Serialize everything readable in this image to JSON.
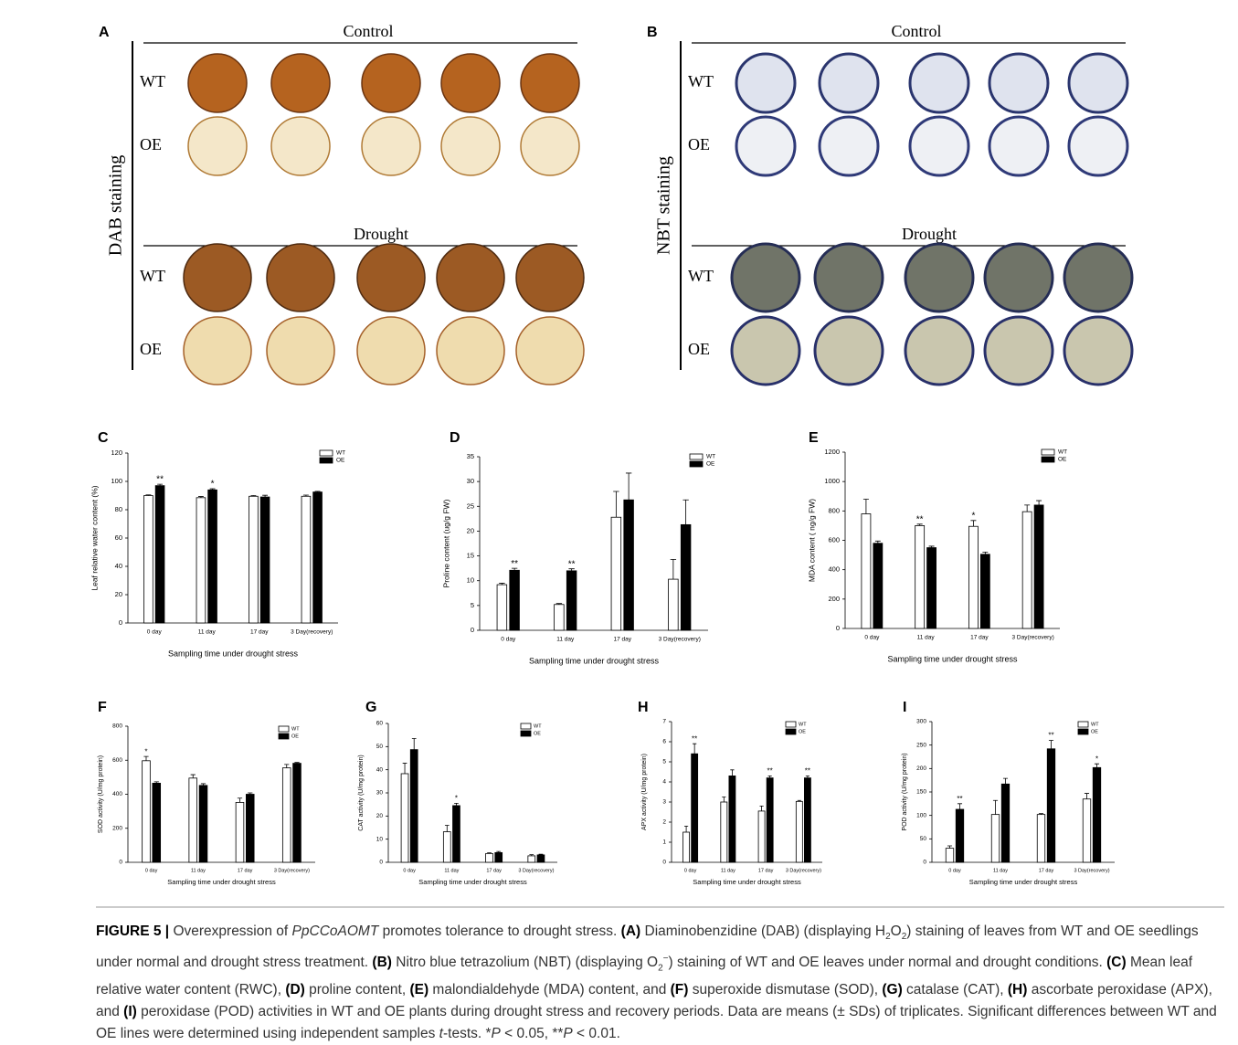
{
  "panels": [
    {
      "label": "A",
      "stain": "DAB staining",
      "groups": [
        {
          "title": "Control",
          "rows": [
            "WT",
            "OE"
          ]
        },
        {
          "title": "Drought",
          "rows": [
            "WT",
            "OE"
          ]
        }
      ]
    },
    {
      "label": "B",
      "stain": "NBT staining",
      "groups": [
        {
          "title": "Control",
          "rows": [
            "WT",
            "OE"
          ]
        },
        {
          "title": "Drought",
          "rows": [
            "WT",
            "OE"
          ]
        }
      ]
    }
  ],
  "chart_data": [
    {
      "type": "bar",
      "panel_label": "C",
      "ylabel": "Leaf relative water content (%)",
      "xlabel": "Sampling time under drought  stress",
      "categories": [
        "0 day",
        "11 day",
        "17 day",
        "3 Day(recovery)"
      ],
      "series": [
        {
          "name": "WT",
          "color": "#ffffff",
          "values": [
            90,
            88.5,
            89.5,
            89.5
          ],
          "errors": [
            0.5,
            0.8,
            0.5,
            0.8
          ],
          "significance": [
            null,
            null,
            null,
            null
          ]
        },
        {
          "name": "OE",
          "color": "#000000",
          "values": [
            97,
            94,
            89,
            92.5
          ],
          "errors": [
            1,
            0.8,
            1.2,
            0.5
          ],
          "significance": [
            "**",
            "*",
            null,
            null
          ]
        }
      ],
      "ylim": [
        0,
        120
      ],
      "yticks": [
        0,
        20,
        40,
        60,
        80,
        100,
        120
      ],
      "legend": "upper right"
    },
    {
      "type": "bar",
      "panel_label": "D",
      "ylabel": "Proline content (ug/g FW)",
      "xlabel": "Sampling time under drought stress",
      "categories": [
        "0 day",
        "11 day",
        "17 day",
        "3 Day(recovery)"
      ],
      "series": [
        {
          "name": "WT",
          "color": "#ffffff",
          "values": [
            9.2,
            5.2,
            22.8,
            10.3
          ],
          "errors": [
            0.3,
            0.2,
            5.2,
            4.0
          ],
          "significance": [
            null,
            null,
            null,
            null
          ]
        },
        {
          "name": "OE",
          "color": "#000000",
          "values": [
            12.1,
            12.0,
            26.3,
            21.3
          ],
          "errors": [
            0.4,
            0.4,
            5.4,
            5.0
          ],
          "significance": [
            "**",
            "**",
            null,
            null
          ]
        }
      ],
      "ylim": [
        0,
        35
      ],
      "yticks": [
        0,
        5,
        10,
        15,
        20,
        25,
        30,
        35
      ],
      "legend": "upper right"
    },
    {
      "type": "bar",
      "panel_label": "E",
      "ylabel": "MDA content ( ng/g FW)",
      "xlabel": "Sampling time under drought stress",
      "categories": [
        "0 day",
        "11 day",
        "17 day",
        "3 Day(recovery)"
      ],
      "series": [
        {
          "name": "WT",
          "color": "#ffffff",
          "values": [
            780,
            700,
            695,
            795
          ],
          "errors": [
            100,
            10,
            40,
            45
          ],
          "significance": [
            null,
            "**",
            "*",
            null
          ]
        },
        {
          "name": "OE",
          "color": "#000000",
          "values": [
            580,
            550,
            505,
            840
          ],
          "errors": [
            15,
            10,
            15,
            30
          ],
          "significance": [
            null,
            null,
            null,
            null
          ]
        }
      ],
      "ylim": [
        0,
        1200
      ],
      "yticks": [
        0,
        200,
        400,
        600,
        800,
        1000,
        1200
      ],
      "legend": "upper right"
    },
    {
      "type": "bar",
      "panel_label": "F",
      "ylabel": "SOD activity (U/mg protein)",
      "xlabel": "Sampling time under drought stress",
      "categories": [
        "0 day",
        "11 day",
        "17 day",
        "3 Day(recovery)"
      ],
      "series": [
        {
          "name": "WT",
          "color": "#ffffff",
          "values": [
            597,
            495,
            352,
            555
          ],
          "errors": [
            25,
            20,
            25,
            20
          ],
          "significance": [
            "*",
            null,
            null,
            null
          ]
        },
        {
          "name": "OE",
          "color": "#000000",
          "values": [
            465,
            452,
            400,
            582
          ],
          "errors": [
            8,
            10,
            8,
            5
          ],
          "significance": [
            null,
            null,
            null,
            null
          ]
        }
      ],
      "ylim": [
        0,
        800
      ],
      "yticks": [
        0,
        200,
        400,
        600,
        800
      ],
      "legend": "upper right"
    },
    {
      "type": "bar",
      "panel_label": "G",
      "ylabel": "CAT activity (U/mg protein)",
      "xlabel": "Sampling time under drought stress",
      "categories": [
        "0 day",
        "11 day",
        "17 day",
        "3 Day(recovery)"
      ],
      "series": [
        {
          "name": "WT",
          "color": "#ffffff",
          "values": [
            38.3,
            13.2,
            3.8,
            2.8
          ],
          "errors": [
            4.5,
            2.8,
            0.3,
            0.5
          ],
          "significance": [
            null,
            null,
            null,
            null
          ]
        },
        {
          "name": "OE",
          "color": "#000000",
          "values": [
            48.7,
            24.5,
            4.2,
            3.2
          ],
          "errors": [
            4.8,
            1.0,
            0.5,
            0.3
          ],
          "significance": [
            null,
            "*",
            null,
            null
          ]
        }
      ],
      "ylim": [
        0,
        60
      ],
      "yticks": [
        0,
        10,
        20,
        30,
        40,
        50,
        60
      ],
      "legend": "upper right"
    },
    {
      "type": "bar",
      "panel_label": "H",
      "ylabel": "APX activity (U/mg protein)",
      "xlabel": "Sampling time under drought stress",
      "categories": [
        "0 day",
        "11 day",
        "17 day",
        "3 Day(recovery)"
      ],
      "series": [
        {
          "name": "WT",
          "color": "#ffffff",
          "values": [
            1.5,
            3.0,
            2.55,
            3.03
          ],
          "errors": [
            0.3,
            0.25,
            0.25,
            0.05
          ],
          "significance": [
            null,
            null,
            null,
            null
          ]
        },
        {
          "name": "OE",
          "color": "#000000",
          "values": [
            5.4,
            4.3,
            4.2,
            4.2
          ],
          "errors": [
            0.5,
            0.3,
            0.1,
            0.1
          ],
          "significance": [
            "**",
            null,
            "**",
            "**"
          ]
        }
      ],
      "ylim": [
        0,
        7
      ],
      "yticks": [
        0,
        1,
        2,
        3,
        4,
        5,
        6,
        7
      ],
      "legend": "upper right"
    },
    {
      "type": "bar",
      "panel_label": "I",
      "ylabel": "POD activity (U/mg protein)",
      "xlabel": "Sampling time under drought stress",
      "categories": [
        "0 day",
        "11 day",
        "17 day",
        "3 Day(recovery)"
      ],
      "series": [
        {
          "name": "WT",
          "color": "#ffffff",
          "values": [
            30,
            102,
            102,
            135
          ],
          "errors": [
            5,
            30,
            2,
            12
          ],
          "significance": [
            null,
            null,
            null,
            null
          ]
        },
        {
          "name": "OE",
          "color": "#000000",
          "values": [
            113,
            167,
            242,
            202
          ],
          "errors": [
            12,
            12,
            18,
            8
          ],
          "significance": [
            "**",
            null,
            "**",
            "*"
          ]
        }
      ],
      "ylim": [
        0,
        300
      ],
      "yticks": [
        0,
        50,
        100,
        150,
        200,
        250,
        300
      ],
      "legend": "upper right"
    }
  ],
  "caption": [
    "FIGURE 5 |",
    " Overexpression of ",
    "PpCCoAOMT",
    " promotes tolerance to drought stress. ",
    "(A)",
    " Diaminobenzidine (DAB) (displaying H",
    "2",
    "O",
    "2",
    ") staining of leaves from WT and OE seedlings under normal and drought stress treatment. ",
    "(B)",
    " Nitro blue tetrazolium (NBT) (displaying O",
    "2",
    "−",
    ") staining of WT and OE leaves under normal and drought conditions. ",
    "(C)",
    " Mean leaf relative water content (RWC), ",
    "(D)",
    " proline content, ",
    "(E)",
    " malondialdehyde (MDA) content, and ",
    "(F)",
    " superoxide dismutase (SOD), ",
    "(G)",
    " catalase (CAT), ",
    "(H)",
    " ascorbate peroxidase (APX), and ",
    "(I)",
    " peroxidase (POD) activities in WT and OE plants during drought stress and recovery periods. Data are means (± SDs) of triplicates. Significant differences between WT and OE lines were determined using independent samples ",
    "t",
    "-tests. *",
    "P",
    " < 0.05, **",
    "P",
    " < 0.01."
  ]
}
